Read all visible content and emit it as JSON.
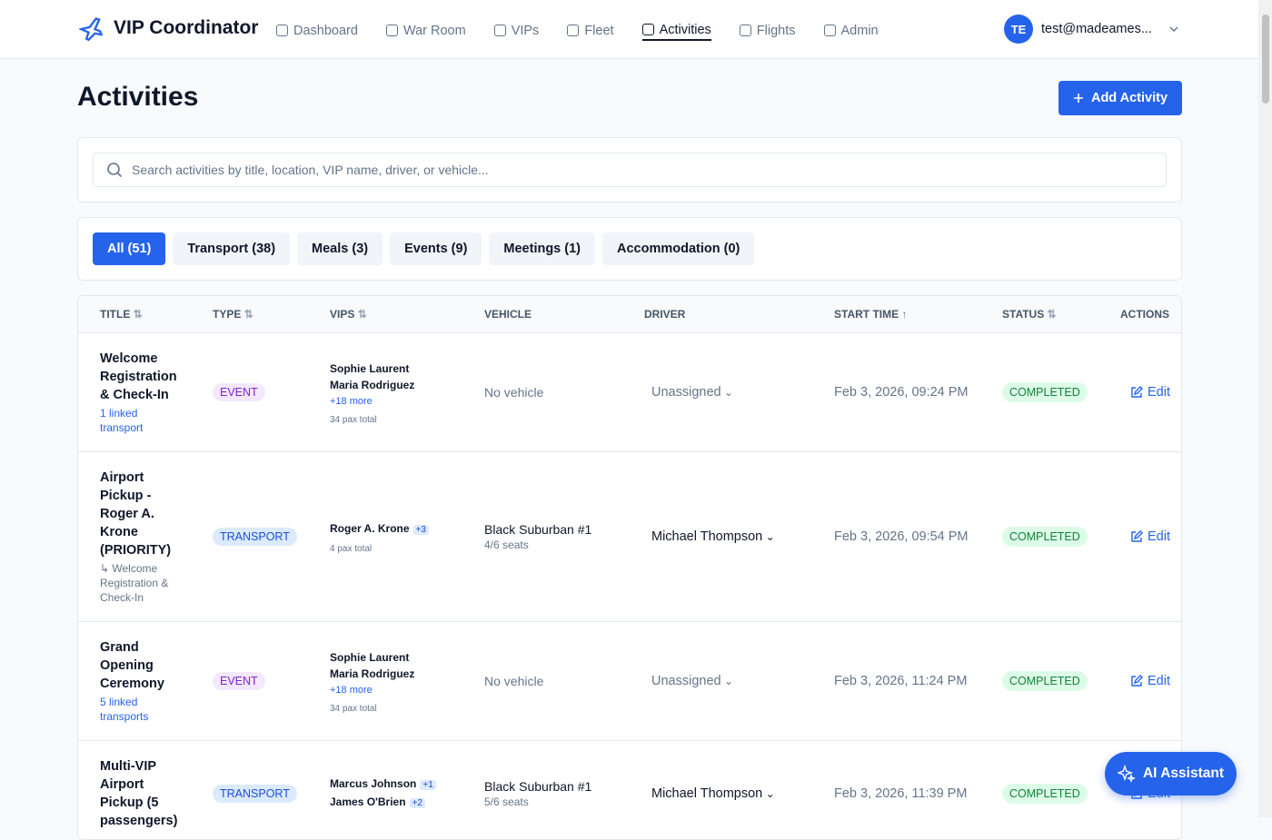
{
  "nav": {
    "brand": "VIP Coordinator",
    "items": [
      "Dashboard",
      "War Room",
      "VIPs",
      "Fleet",
      "Activities",
      "Flights",
      "Admin"
    ],
    "active": 4
  },
  "user": {
    "initials": "TE",
    "email": "test@madeames..."
  },
  "page": {
    "title": "Activities",
    "add_button": "Add Activity"
  },
  "search": {
    "placeholder": "Search activities by title, location, VIP name, driver, or vehicle..."
  },
  "filters": {
    "items": [
      "All (51)",
      "Transport (38)",
      "Meals (3)",
      "Events (9)",
      "Meetings (1)",
      "Accommodation (0)"
    ],
    "active": 0
  },
  "table": {
    "columns": [
      {
        "label": "TITLE",
        "sort": "both"
      },
      {
        "label": "TYPE",
        "sort": "both"
      },
      {
        "label": "VIPS",
        "sort": "both"
      },
      {
        "label": "VEHICLE"
      },
      {
        "label": "DRIVER"
      },
      {
        "label": "START TIME",
        "sort": "asc"
      },
      {
        "label": "STATUS",
        "sort": "both"
      },
      {
        "label": "ACTIONS"
      }
    ],
    "rows": [
      {
        "title": "Welcome Registration & Check-In",
        "link": "1 linked transport",
        "type": "EVENT",
        "vips": [
          {
            "name": "Sophie Laurent"
          },
          {
            "name": "Maria Rodriguez"
          }
        ],
        "more": "+18 more",
        "pax": "34 pax total",
        "vehicle": "No vehicle",
        "driver": "Unassigned",
        "start": "Feb 3, 2026, 09:24 PM",
        "status": "COMPLETED",
        "action": "Edit"
      },
      {
        "title": "Airport Pickup - Roger A. Krone (PRIORITY)",
        "note": "↳ Welcome Registration & Check-In",
        "type": "TRANSPORT",
        "vips": [
          {
            "name": "Roger A. Krone",
            "extra": "+3"
          }
        ],
        "pax": "4 pax total",
        "vehicle": "Black Suburban #1",
        "seats": "4/6 seats",
        "driver": "Michael Thompson",
        "start": "Feb 3, 2026, 09:54 PM",
        "status": "COMPLETED",
        "action": "Edit"
      },
      {
        "title": "Grand Opening Ceremony",
        "link": "5 linked transports",
        "type": "EVENT",
        "vips": [
          {
            "name": "Sophie Laurent"
          },
          {
            "name": "Maria Rodriguez"
          }
        ],
        "more": "+18 more",
        "pax": "34 pax total",
        "vehicle": "No vehicle",
        "driver": "Unassigned",
        "start": "Feb 3, 2026, 11:24 PM",
        "status": "COMPLETED",
        "action": "Edit"
      },
      {
        "title": "Multi-VIP Airport Pickup (5 passengers)",
        "type": "TRANSPORT",
        "vips": [
          {
            "name": "Marcus Johnson",
            "extra": "+1"
          },
          {
            "name": "James O'Brien",
            "extra": "+2"
          }
        ],
        "vehicle": "Black Suburban #1",
        "seats": "5/6 seats",
        "driver": "Michael Thompson",
        "start": "Feb 3, 2026, 11:39 PM",
        "status": "COMPLETED",
        "action": "Edit"
      }
    ]
  },
  "assistant": {
    "label": "AI Assistant"
  }
}
